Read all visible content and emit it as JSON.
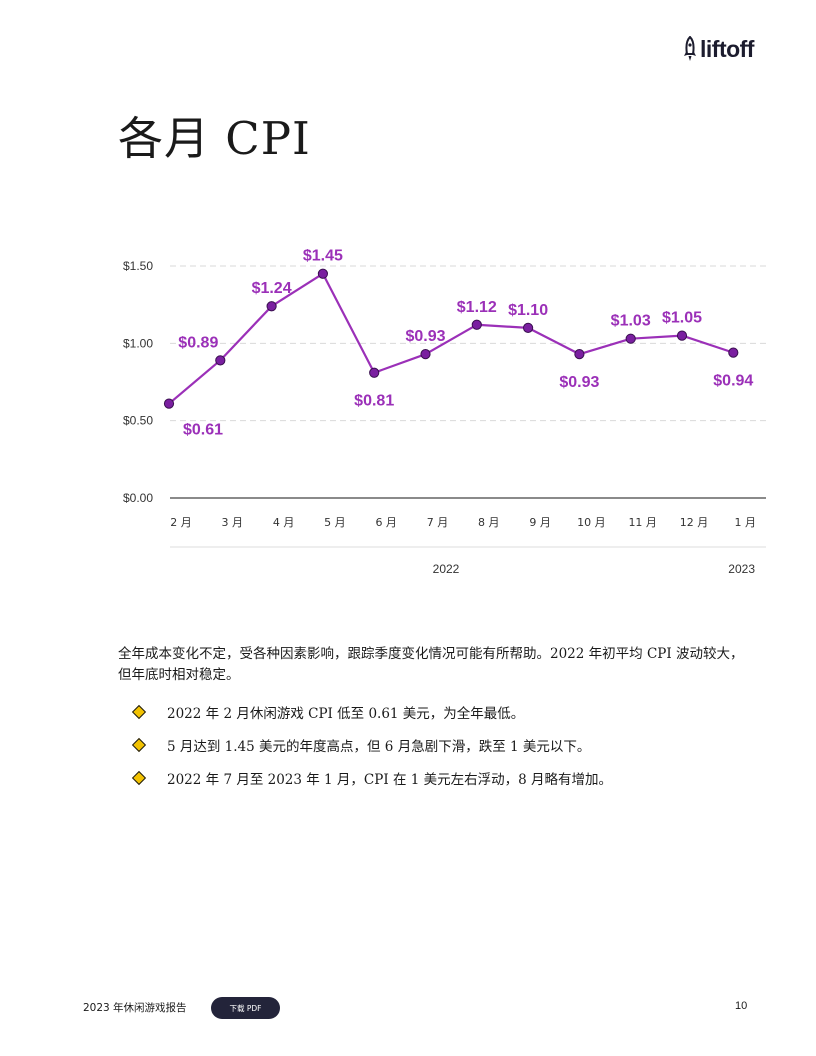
{
  "brand": {
    "name": "liftoff",
    "accent": "#9b30b8",
    "dark": "#23243a"
  },
  "page": {
    "title": "各月 CPI"
  },
  "chart_data": {
    "type": "line",
    "title": "",
    "xlabel": "",
    "ylabel": "",
    "categories": [
      "2 月",
      "3 月",
      "4 月",
      "5 月",
      "6 月",
      "7 月",
      "8 月",
      "9 月",
      "10 月",
      "11 月",
      "12 月",
      "1 月"
    ],
    "values": [
      0.61,
      0.89,
      1.24,
      1.45,
      0.81,
      0.93,
      1.12,
      1.1,
      0.93,
      1.03,
      1.05,
      0.94
    ],
    "data_labels": [
      "$0.61",
      "$0.89",
      "$1.24",
      "$1.45",
      "$0.81",
      "$0.93",
      "$1.12",
      "$1.10",
      "$0.93",
      "$1.03",
      "$1.05",
      "$0.94"
    ],
    "label_positions": [
      "below",
      "above",
      "above",
      "above",
      "below",
      "above",
      "above",
      "above",
      "below",
      "above",
      "above",
      "below"
    ],
    "y_ticks": [
      0,
      0.5,
      1.0,
      1.5
    ],
    "y_tick_labels": [
      "$0.00",
      "$0.50",
      "$1.00",
      "$1.50"
    ],
    "ylim": [
      0,
      1.5
    ],
    "grid": true,
    "year_groups": [
      {
        "label": "2022",
        "from": 0,
        "to": 10
      },
      {
        "label": "2023",
        "from": 11,
        "to": 11
      }
    ],
    "line_color": "#9b30b8",
    "marker_color": "#7a1fa0"
  },
  "body": {
    "paragraph": "全年成本变化不定，受各种因素影响，跟踪季度变化情况可能有所帮助。2022 年初平均 CPI 波动较大，但年底时相对稳定。",
    "bullets": [
      "2022 年 2 月休闲游戏 CPI 低至 0.61 美元，为全年最低。",
      "5 月达到 1.45 美元的年度高点，但 6 月急剧下滑，跌至 1 美元以下。",
      "2022 年 7 月至 2023 年 1 月，CPI 在 1 美元左右浮动，8 月略有增加。"
    ]
  },
  "footer": {
    "title": "2023 年休闲游戏报告",
    "download_label": "下载 PDF",
    "page_number": "10"
  }
}
